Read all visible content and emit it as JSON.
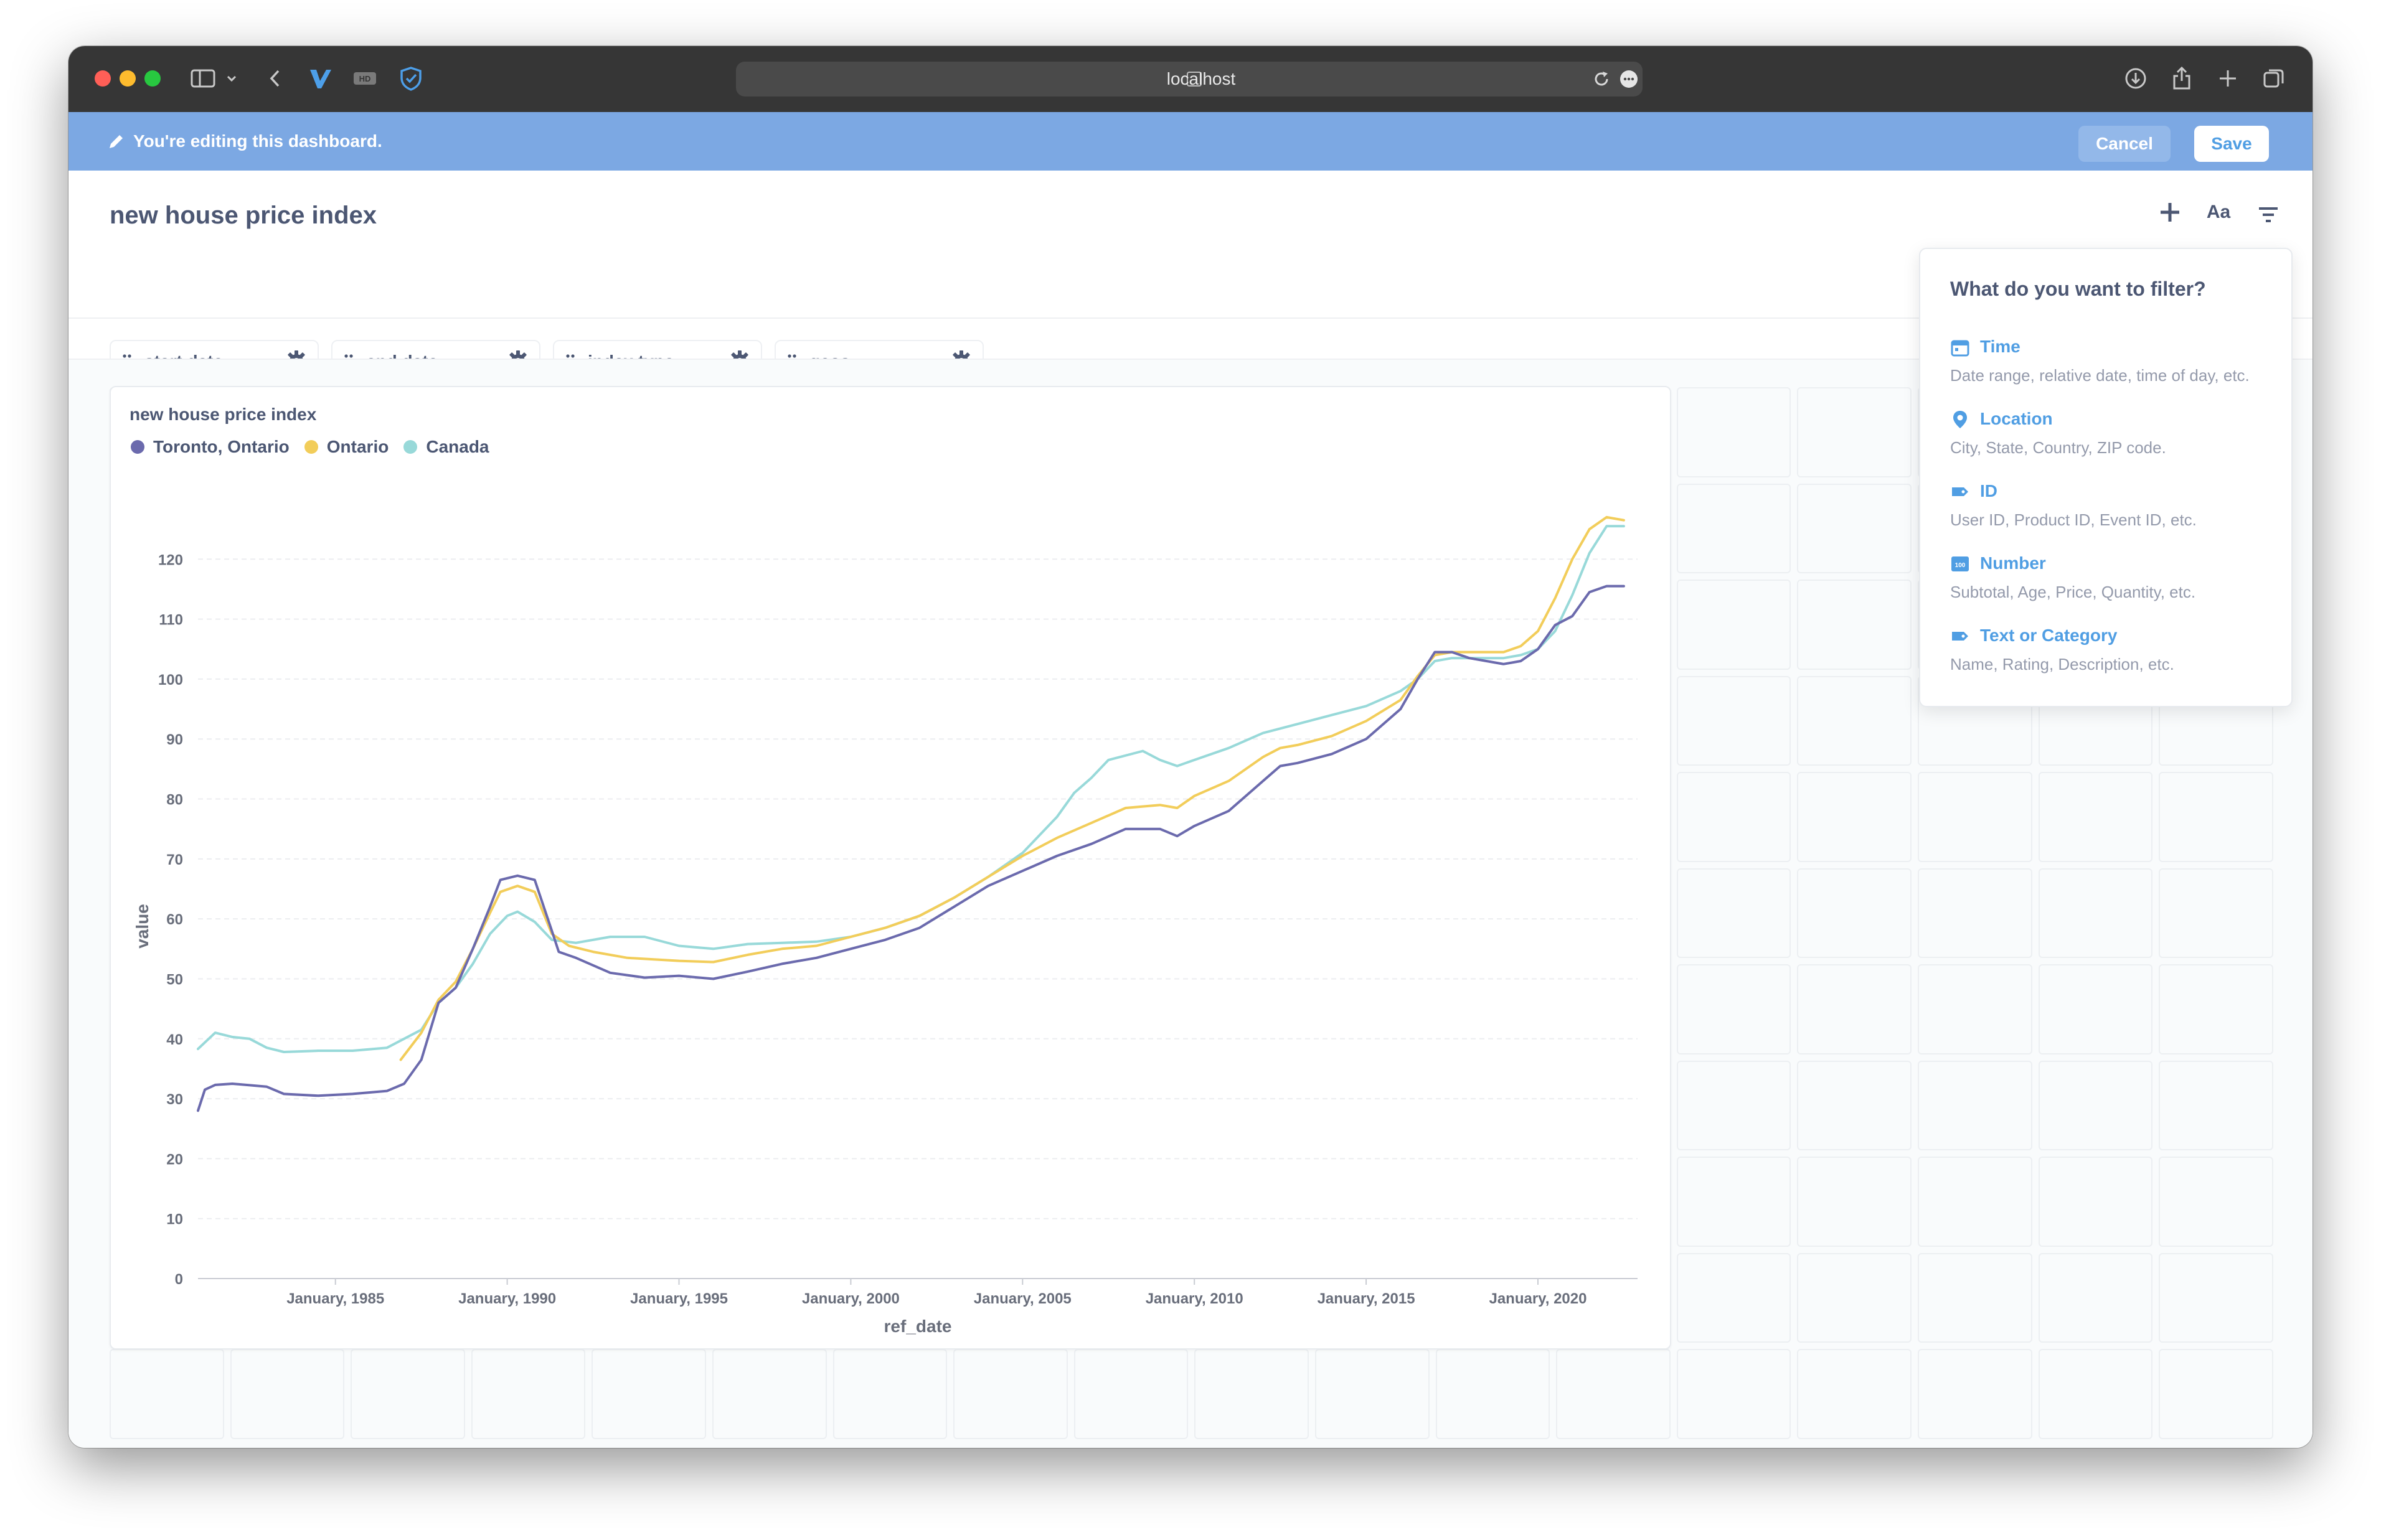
{
  "browser": {
    "url": "localhost"
  },
  "edit_bar": {
    "message": "You're editing this dashboard.",
    "cancel_label": "Cancel",
    "save_label": "Save"
  },
  "dashboard": {
    "title": "new house price index",
    "header_icons": [
      "add-icon",
      "text-icon",
      "filter-icon"
    ],
    "text_button_label": "Aa",
    "parameters": [
      {
        "label": "start date"
      },
      {
        "label": "end date"
      },
      {
        "label": "index type"
      },
      {
        "label": "geos"
      }
    ]
  },
  "filter_popover": {
    "title": "What do you want to filter?",
    "items": [
      {
        "title": "Time",
        "description": "Date range, relative date, time of day, etc.",
        "icon": "calendar-icon"
      },
      {
        "title": "Location",
        "description": "City, State, Country, ZIP code.",
        "icon": "location-pin-icon"
      },
      {
        "title": "ID",
        "description": "User ID, Product ID, Event ID, etc.",
        "icon": "tag-icon"
      },
      {
        "title": "Number",
        "description": "Subtotal, Age, Price, Quantity, etc.",
        "icon": "number-icon"
      },
      {
        "title": "Text or Category",
        "description": "Name, Rating, Description, etc.",
        "icon": "label-icon"
      }
    ]
  },
  "card": {
    "title": "new house price index"
  },
  "chart_data": {
    "type": "line",
    "xlabel": "ref_date",
    "ylabel": "value",
    "ylim": [
      0,
      130
    ],
    "xlim": [
      1981.0,
      2022.9
    ],
    "y_ticks": [
      0,
      10,
      20,
      30,
      40,
      50,
      60,
      70,
      80,
      90,
      100,
      110,
      120
    ],
    "x_ticks": [
      {
        "value": 1985,
        "label": "January, 1985"
      },
      {
        "value": 1990,
        "label": "January, 1990"
      },
      {
        "value": 1995,
        "label": "January, 1995"
      },
      {
        "value": 2000,
        "label": "January, 2000"
      },
      {
        "value": 2005,
        "label": "January, 2005"
      },
      {
        "value": 2010,
        "label": "January, 2010"
      },
      {
        "value": 2015,
        "label": "January, 2015"
      },
      {
        "value": 2020,
        "label": "January, 2020"
      }
    ],
    "grid": true,
    "legend_position": "top-left",
    "series": [
      {
        "name": "Toronto, Ontario",
        "color": "#6b6aad",
        "points": [
          [
            1981.0,
            28.0
          ],
          [
            1981.2,
            31.5
          ],
          [
            1981.5,
            32.3
          ],
          [
            1982.0,
            32.5
          ],
          [
            1983.0,
            32.0
          ],
          [
            1983.5,
            30.8
          ],
          [
            1984.5,
            30.5
          ],
          [
            1985.5,
            30.8
          ],
          [
            1986.5,
            31.3
          ],
          [
            1987.0,
            32.5
          ],
          [
            1987.5,
            36.5
          ],
          [
            1988.0,
            46.0
          ],
          [
            1988.5,
            48.5
          ],
          [
            1989.0,
            55.0
          ],
          [
            1989.5,
            62.0
          ],
          [
            1989.8,
            66.5
          ],
          [
            1990.3,
            67.2
          ],
          [
            1990.8,
            66.5
          ],
          [
            1991.3,
            58.0
          ],
          [
            1991.5,
            54.5
          ],
          [
            1992.0,
            53.5
          ],
          [
            1993.0,
            51.0
          ],
          [
            1994.0,
            50.2
          ],
          [
            1995.0,
            50.5
          ],
          [
            1996.0,
            50.0
          ],
          [
            1997.0,
            51.2
          ],
          [
            1998.0,
            52.5
          ],
          [
            1999.0,
            53.5
          ],
          [
            2000.0,
            55.0
          ],
          [
            2001.0,
            56.5
          ],
          [
            2002.0,
            58.5
          ],
          [
            2003.0,
            62.0
          ],
          [
            2004.0,
            65.5
          ],
          [
            2005.0,
            68.0
          ],
          [
            2006.0,
            70.5
          ],
          [
            2007.0,
            72.5
          ],
          [
            2008.0,
            75.0
          ],
          [
            2009.0,
            75.0
          ],
          [
            2009.5,
            73.8
          ],
          [
            2010.0,
            75.5
          ],
          [
            2011.0,
            78.0
          ],
          [
            2012.0,
            83.0
          ],
          [
            2012.5,
            85.5
          ],
          [
            2013.0,
            86.0
          ],
          [
            2014.0,
            87.5
          ],
          [
            2015.0,
            90.0
          ],
          [
            2016.0,
            95.0
          ],
          [
            2016.5,
            100.0
          ],
          [
            2017.0,
            104.5
          ],
          [
            2017.5,
            104.5
          ],
          [
            2018.0,
            103.5
          ],
          [
            2019.0,
            102.5
          ],
          [
            2019.5,
            103.0
          ],
          [
            2020.0,
            105.0
          ],
          [
            2020.5,
            109.0
          ],
          [
            2021.0,
            110.5
          ],
          [
            2021.5,
            114.5
          ],
          [
            2022.0,
            115.5
          ],
          [
            2022.5,
            115.5
          ]
        ]
      },
      {
        "name": "Ontario",
        "color": "#f2cd5a",
        "points": [
          [
            1986.9,
            36.5
          ],
          [
            1987.5,
            41.0
          ],
          [
            1988.0,
            46.5
          ],
          [
            1988.5,
            49.5
          ],
          [
            1989.0,
            55.0
          ],
          [
            1989.5,
            61.0
          ],
          [
            1989.8,
            64.5
          ],
          [
            1990.3,
            65.5
          ],
          [
            1990.8,
            64.5
          ],
          [
            1991.3,
            57.5
          ],
          [
            1991.8,
            55.5
          ],
          [
            1992.5,
            54.5
          ],
          [
            1993.5,
            53.5
          ],
          [
            1995.0,
            53.0
          ],
          [
            1996.0,
            52.8
          ],
          [
            1997.0,
            54.0
          ],
          [
            1998.0,
            55.0
          ],
          [
            1999.0,
            55.5
          ],
          [
            2000.0,
            57.0
          ],
          [
            2001.0,
            58.5
          ],
          [
            2002.0,
            60.5
          ],
          [
            2003.0,
            63.5
          ],
          [
            2004.0,
            67.0
          ],
          [
            2005.0,
            70.5
          ],
          [
            2006.0,
            73.5
          ],
          [
            2007.0,
            76.0
          ],
          [
            2008.0,
            78.5
          ],
          [
            2009.0,
            79.0
          ],
          [
            2009.5,
            78.5
          ],
          [
            2010.0,
            80.5
          ],
          [
            2011.0,
            83.0
          ],
          [
            2012.0,
            87.0
          ],
          [
            2012.5,
            88.5
          ],
          [
            2013.0,
            89.0
          ],
          [
            2014.0,
            90.5
          ],
          [
            2015.0,
            93.0
          ],
          [
            2016.0,
            96.5
          ],
          [
            2016.5,
            100.5
          ],
          [
            2017.0,
            104.0
          ],
          [
            2017.5,
            104.5
          ],
          [
            2018.0,
            104.5
          ],
          [
            2019.0,
            104.5
          ],
          [
            2019.5,
            105.5
          ],
          [
            2020.0,
            108.0
          ],
          [
            2020.5,
            113.5
          ],
          [
            2021.0,
            120.0
          ],
          [
            2021.5,
            125.0
          ],
          [
            2022.0,
            127.0
          ],
          [
            2022.5,
            126.5
          ]
        ]
      },
      {
        "name": "Canada",
        "color": "#98d9d9",
        "points": [
          [
            1981.0,
            38.3
          ],
          [
            1981.5,
            41.0
          ],
          [
            1982.0,
            40.3
          ],
          [
            1982.5,
            40.0
          ],
          [
            1983.0,
            38.5
          ],
          [
            1983.5,
            37.8
          ],
          [
            1984.5,
            38.0
          ],
          [
            1985.5,
            38.0
          ],
          [
            1986.5,
            38.5
          ],
          [
            1987.5,
            41.5
          ],
          [
            1988.0,
            46.0
          ],
          [
            1988.5,
            48.5
          ],
          [
            1989.0,
            52.5
          ],
          [
            1989.5,
            57.5
          ],
          [
            1990.0,
            60.5
          ],
          [
            1990.3,
            61.2
          ],
          [
            1990.8,
            59.5
          ],
          [
            1991.3,
            56.5
          ],
          [
            1992.0,
            56.0
          ],
          [
            1993.0,
            57.0
          ],
          [
            1994.0,
            57.0
          ],
          [
            1995.0,
            55.5
          ],
          [
            1996.0,
            55.0
          ],
          [
            1997.0,
            55.8
          ],
          [
            1998.0,
            56.0
          ],
          [
            1999.0,
            56.2
          ],
          [
            2000.0,
            57.0
          ],
          [
            2001.0,
            58.5
          ],
          [
            2002.0,
            60.5
          ],
          [
            2003.0,
            63.5
          ],
          [
            2004.0,
            67.0
          ],
          [
            2005.0,
            71.0
          ],
          [
            2006.0,
            77.0
          ],
          [
            2006.5,
            81.0
          ],
          [
            2007.0,
            83.5
          ],
          [
            2007.5,
            86.5
          ],
          [
            2008.5,
            88.0
          ],
          [
            2009.0,
            86.5
          ],
          [
            2009.5,
            85.5
          ],
          [
            2010.0,
            86.5
          ],
          [
            2011.0,
            88.5
          ],
          [
            2012.0,
            91.0
          ],
          [
            2013.0,
            92.5
          ],
          [
            2014.0,
            94.0
          ],
          [
            2015.0,
            95.5
          ],
          [
            2016.0,
            98.0
          ],
          [
            2016.5,
            100.0
          ],
          [
            2017.0,
            103.0
          ],
          [
            2017.5,
            103.5
          ],
          [
            2018.0,
            103.5
          ],
          [
            2019.0,
            103.5
          ],
          [
            2019.5,
            104.0
          ],
          [
            2020.0,
            105.0
          ],
          [
            2020.5,
            108.0
          ],
          [
            2021.0,
            114.0
          ],
          [
            2021.5,
            121.0
          ],
          [
            2022.0,
            125.5
          ],
          [
            2022.5,
            125.5
          ]
        ]
      }
    ]
  }
}
